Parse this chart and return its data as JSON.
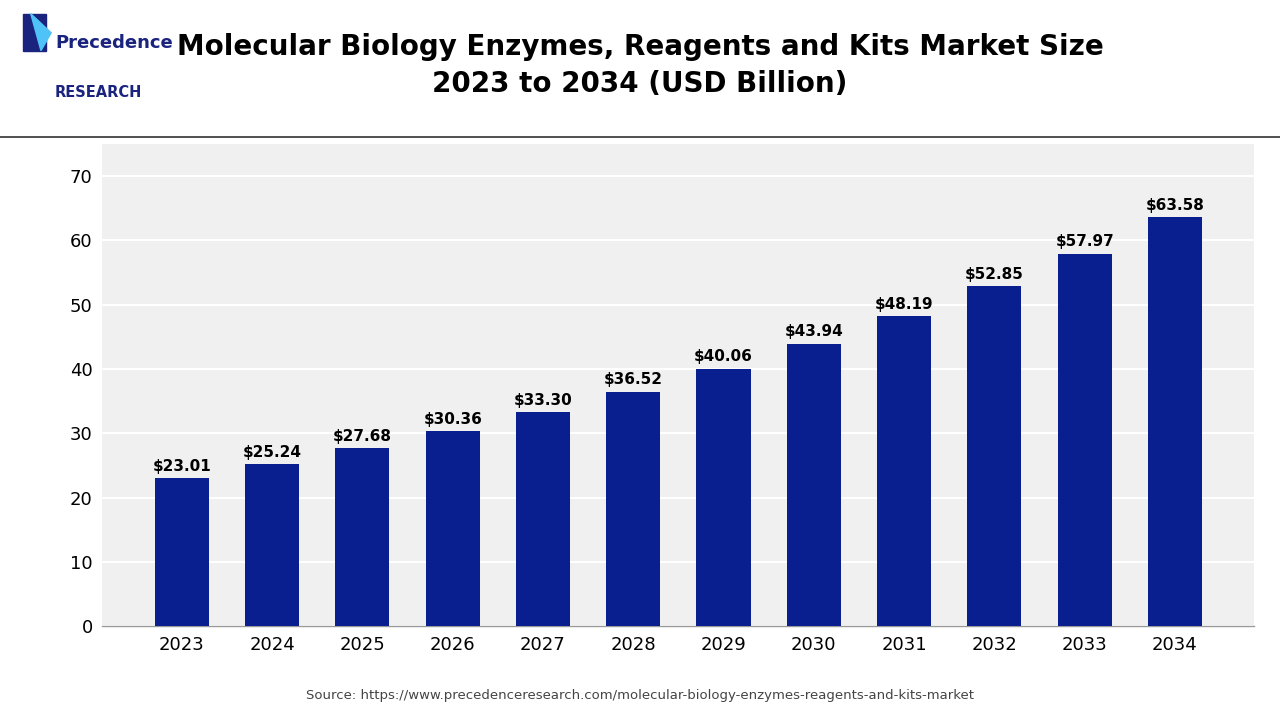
{
  "title": "Molecular Biology Enzymes, Reagents and Kits Market Size\n2023 to 2034 (USD Billion)",
  "categories": [
    "2023",
    "2024",
    "2025",
    "2026",
    "2027",
    "2028",
    "2029",
    "2030",
    "2031",
    "2032",
    "2033",
    "2034"
  ],
  "values": [
    23.01,
    25.24,
    27.68,
    30.36,
    33.3,
    36.52,
    40.06,
    43.94,
    48.19,
    52.85,
    57.97,
    63.58
  ],
  "labels": [
    "$23.01",
    "$25.24",
    "$27.68",
    "$30.36",
    "$33.30",
    "$36.52",
    "$40.06",
    "$43.94",
    "$48.19",
    "$52.85",
    "$57.97",
    "$63.58"
  ],
  "bar_color": "#0a1f8f",
  "background_color": "#ffffff",
  "plot_background": "#f0f0f0",
  "ylim": [
    0,
    75
  ],
  "yticks": [
    0,
    10,
    20,
    30,
    40,
    50,
    60,
    70
  ],
  "grid_color": "#ffffff",
  "title_fontsize": 20,
  "tick_fontsize": 13,
  "label_fontsize": 11,
  "source_text": "Source: https://www.precedenceresearch.com/molecular-biology-enzymes-reagents-and-kits-market",
  "logo_line1": "Precedence",
  "logo_line2": "RESEARCH",
  "logo_color": "#1a237e"
}
